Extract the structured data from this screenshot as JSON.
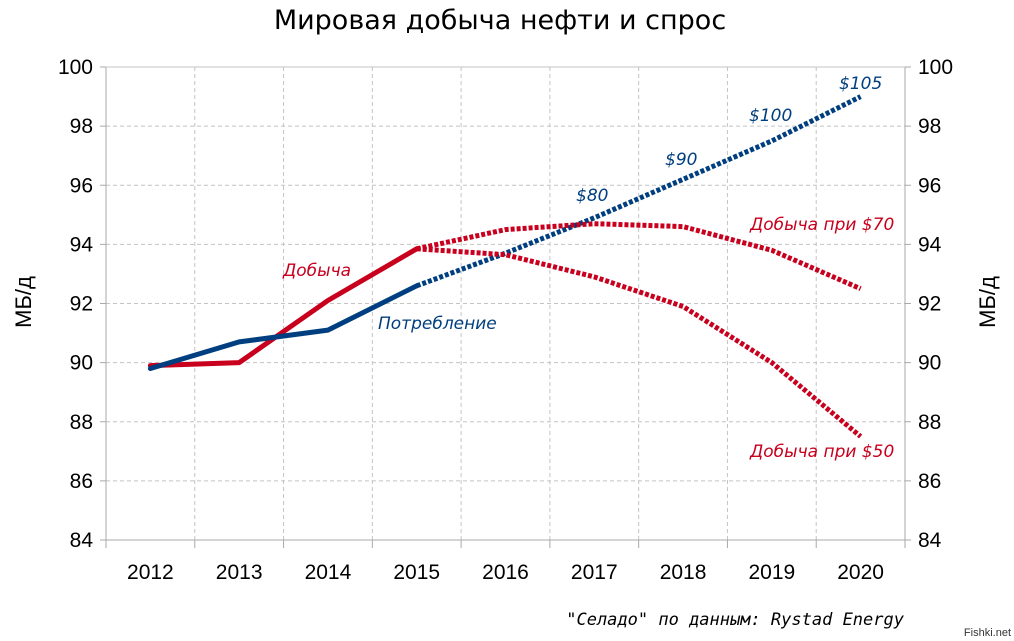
{
  "chart_data": {
    "type": "line",
    "title": "Мировая добыча нефти и спрос",
    "ylabel_left": "МБ/д",
    "ylabel_right": "МБ/д",
    "categories": [
      "2012",
      "2013",
      "2014",
      "2015",
      "2016",
      "2017",
      "2018",
      "2019",
      "2020"
    ],
    "ylim": [
      84,
      100
    ],
    "yticks": [
      84,
      86,
      88,
      90,
      92,
      94,
      96,
      98,
      100
    ],
    "grid": true,
    "colors": {
      "production": "#c8001e",
      "consumption": "#003f7f"
    },
    "series": [
      {
        "name": "Добыча",
        "style": "solid",
        "color": "#c8001e",
        "x": [
          "2012",
          "2013",
          "2014",
          "2015"
        ],
        "values": [
          89.9,
          90.0,
          92.1,
          93.85
        ]
      },
      {
        "name": "Потребление",
        "style": "solid",
        "color": "#003f7f",
        "x": [
          "2012",
          "2013",
          "2014",
          "2015"
        ],
        "values": [
          89.8,
          90.7,
          91.1,
          92.6
        ]
      },
      {
        "name": "Потребление (прогноз)",
        "style": "dotted",
        "color": "#003f7f",
        "x": [
          "2015",
          "2016",
          "2017",
          "2018",
          "2019",
          "2020"
        ],
        "values": [
          92.6,
          93.7,
          94.9,
          96.2,
          97.5,
          99.0
        ]
      },
      {
        "name": "Добыча при $70",
        "style": "dotted",
        "color": "#c8001e",
        "x": [
          "2015",
          "2016",
          "2017",
          "2018",
          "2019",
          "2020"
        ],
        "values": [
          93.85,
          94.5,
          94.7,
          94.6,
          93.8,
          92.5
        ]
      },
      {
        "name": "Добыча при $50",
        "style": "dotted",
        "color": "#c8001e",
        "x": [
          "2015",
          "2016",
          "2017",
          "2018",
          "2019",
          "2020"
        ],
        "values": [
          93.85,
          93.65,
          92.9,
          91.9,
          90.0,
          87.5
        ]
      }
    ],
    "annotations": {
      "production": "Добыча",
      "consumption": "Потребление",
      "production_70": "Добыча при $70",
      "production_50": "Добыча при $50",
      "prices": [
        "$80",
        "$90",
        "$100",
        "$105"
      ]
    },
    "source": "\"Селадо\" по данным: Rystad Energy",
    "watermark": "Fishki.net"
  }
}
